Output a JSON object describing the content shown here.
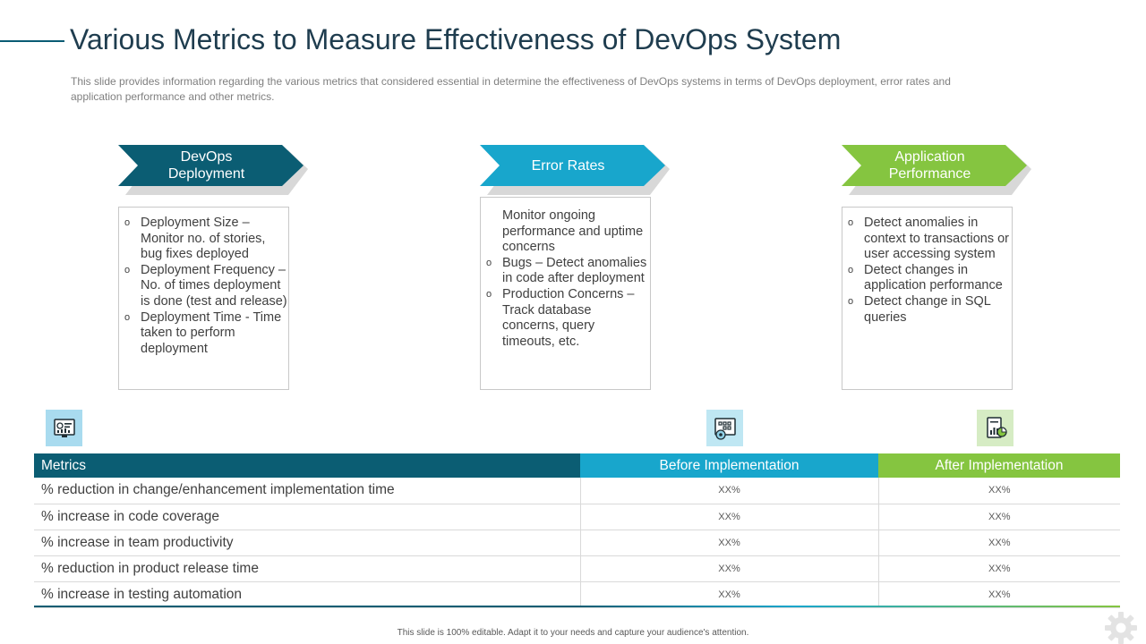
{
  "title": "Various Metrics to Measure Effectiveness of DevOps System",
  "subtitle": "This slide provides information regarding the various metrics that considered essential in determine the effectiveness of DevOps systems in terms of DevOps deployment, error rates and application performance and other metrics.",
  "colors": {
    "dark_teal": "#0b5d73",
    "cyan": "#18a6cc",
    "green": "#85c540"
  },
  "columns": [
    {
      "heading": "DevOps Deployment",
      "items": [
        {
          "bullet": true,
          "text": "Deployment Size – Monitor no. of stories, bug fixes deployed"
        },
        {
          "bullet": true,
          "text": "Deployment Frequency – No. of times deployment is done (test and release)"
        },
        {
          "bullet": true,
          "text": "Deployment Time - Time taken to perform deployment"
        }
      ]
    },
    {
      "heading": "Error Rates",
      "items": [
        {
          "bullet": false,
          "text": "Monitor ongoing performance and uptime concerns"
        },
        {
          "bullet": true,
          "text": "Bugs – Detect anomalies in code after deployment"
        },
        {
          "bullet": true,
          "text": "Production Concerns – Track database concerns, query timeouts, etc."
        }
      ]
    },
    {
      "heading": "Application Performance",
      "items": [
        {
          "bullet": true,
          "text": "Detect anomalies in context to transactions or user accessing system"
        },
        {
          "bullet": true,
          "text": "Detect changes in application performance"
        },
        {
          "bullet": true,
          "text": "Detect change in SQL queries"
        }
      ]
    }
  ],
  "icons": [
    "dashboard-icon",
    "code-settings-icon",
    "report-chart-icon"
  ],
  "table": {
    "headers": [
      "Metrics",
      "Before Implementation",
      "After Implementation"
    ],
    "rows": [
      [
        "% reduction in change/enhancement  implementation time",
        "XX%",
        "XX%"
      ],
      [
        "% increase in code coverage",
        "XX%",
        "XX%"
      ],
      [
        "% increase in team productivity",
        "XX%",
        "XX%"
      ],
      [
        "% reduction in product release time",
        "XX%",
        "XX%"
      ],
      [
        "% increase in testing automation",
        "XX%",
        "XX%"
      ]
    ]
  },
  "footer": "This slide is 100% editable. Adapt it to your needs and capture your audience's attention."
}
